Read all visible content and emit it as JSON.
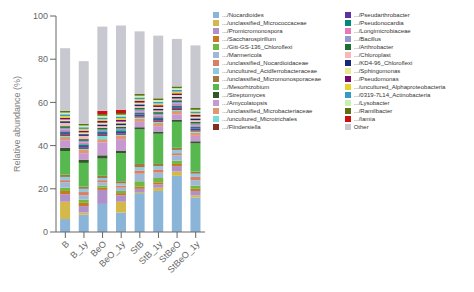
{
  "chart_data": {
    "type": "bar",
    "stacked": true,
    "legend": "right",
    "grid": false,
    "ylabel": "Relative abundance (%)",
    "categories": [
      "B",
      "B_1y",
      "BeO",
      "BeO_1y",
      "StB",
      "StB_1y",
      "StBeO",
      "StBeO_1y"
    ],
    "ylim": [
      0,
      100
    ],
    "yticks": [
      0,
      20,
      40,
      60,
      80,
      100
    ],
    "series": [
      {
        "name": ".../Nocardioides",
        "color": "#8ab4d8",
        "values": [
          6.0,
          8.0,
          13.0,
          9.0,
          18.0,
          19.0,
          26.0,
          16.0
        ]
      },
      {
        "name": ".../unclassified_Micrococcaceae",
        "color": "#d4b84a",
        "values": [
          8.0,
          1.0,
          0.0,
          5.0,
          0.5,
          1.5,
          2.0,
          1.0
        ]
      },
      {
        "name": ".../Promicromonospora",
        "color": "#b090c8",
        "values": [
          3.5,
          3.0,
          6.5,
          3.0,
          1.5,
          1.5,
          2.5,
          2.0
        ]
      },
      {
        "name": ".../Saccharospirillum",
        "color": "#c87820",
        "values": [
          1.5,
          1.5,
          1.0,
          1.0,
          1.0,
          1.0,
          1.0,
          1.0
        ]
      },
      {
        "name": ".../Gitt-GS-136_Chloroflexi",
        "color": "#70b840",
        "values": [
          1.5,
          1.5,
          1.0,
          1.0,
          2.5,
          2.0,
          1.5,
          1.5
        ]
      },
      {
        "name": ".../Marmericola",
        "color": "#a0b8d8",
        "values": [
          2.5,
          2.0,
          1.5,
          1.5,
          3.5,
          2.5,
          2.5,
          2.5
        ]
      },
      {
        "name": ".../unclassified_Nocardioidaceae",
        "color": "#d88060",
        "values": [
          1.0,
          1.5,
          1.0,
          1.0,
          1.5,
          1.5,
          1.0,
          1.5
        ]
      },
      {
        "name": ".../uncultured_Acidferrobacteraceae",
        "color": "#90c8e0",
        "values": [
          1.5,
          1.5,
          1.0,
          1.0,
          1.5,
          1.5,
          1.5,
          1.5
        ]
      },
      {
        "name": ".../unclassified_Micromonosporaceae",
        "color": "#a07840",
        "values": [
          1.0,
          1.0,
          1.0,
          1.0,
          1.5,
          1.0,
          1.0,
          1.0
        ]
      },
      {
        "name": ".../Mesorhizobium",
        "color": "#58b850",
        "values": [
          11.0,
          11.0,
          8.0,
          13.0,
          16.0,
          14.0,
          12.0,
          13.0
        ]
      },
      {
        "name": ".../Streptomyces",
        "color": "#305828",
        "values": [
          1.5,
          1.5,
          1.5,
          1.0,
          1.0,
          1.0,
          1.0,
          1.0
        ]
      },
      {
        "name": ".../Amycolatopsis",
        "color": "#c898d0",
        "values": [
          3.5,
          3.0,
          6.0,
          5.5,
          2.5,
          2.5,
          2.5,
          2.5
        ]
      },
      {
        "name": ".../unclassified_Microbacteriaceae",
        "color": "#e09870",
        "values": [
          1.5,
          1.5,
          1.5,
          1.5,
          1.5,
          1.5,
          1.5,
          1.5
        ]
      },
      {
        "name": ".../uncultured_Microtrichales",
        "color": "#70e0d8",
        "values": [
          0.5,
          0.5,
          1.5,
          0.5,
          0.5,
          0.5,
          0.5,
          0.5
        ]
      },
      {
        "name": ".../Flindersiella",
        "color": "#803020",
        "values": [
          0.5,
          0.5,
          0.5,
          0.5,
          0.5,
          0.5,
          0.5,
          0.5
        ]
      },
      {
        "name": ".../Pseudarthrobacter",
        "color": "#6030a0",
        "values": [
          0.8,
          0.8,
          0.8,
          0.8,
          0.8,
          0.8,
          0.8,
          0.8
        ]
      },
      {
        "name": ".../Pseudonocardia",
        "color": "#008878",
        "values": [
          0.8,
          0.8,
          0.8,
          0.8,
          0.8,
          0.8,
          0.8,
          0.8
        ]
      },
      {
        "name": ".../Longimicrobiaceae",
        "color": "#e878b8",
        "values": [
          0.8,
          0.8,
          0.0,
          0.0,
          0.8,
          0.8,
          0.8,
          0.8
        ]
      },
      {
        "name": ".../Bacillus",
        "color": "#9898d0",
        "values": [
          0.8,
          0.8,
          0.8,
          0.8,
          0.8,
          0.8,
          0.8,
          0.8
        ]
      },
      {
        "name": ".../Arthrobacter",
        "color": "#1a7030",
        "values": [
          0.8,
          0.8,
          0.8,
          0.8,
          0.8,
          0.8,
          0.8,
          0.8
        ]
      },
      {
        "name": ".../Chloroplast",
        "color": "#f8b8b8",
        "values": [
          1.5,
          1.5,
          0.8,
          0.8,
          0.8,
          0.8,
          0.8,
          0.8
        ]
      },
      {
        "name": ".../KD4-96_Chloroflexi",
        "color": "#182878",
        "values": [
          0.8,
          0.8,
          0.8,
          0.8,
          0.8,
          0.8,
          0.8,
          0.8
        ]
      },
      {
        "name": ".../Sphingomonas",
        "color": "#e8e890",
        "values": [
          0.8,
          0.8,
          0.8,
          0.8,
          0.8,
          0.8,
          0.8,
          0.8
        ]
      },
      {
        "name": ".../Pseudomonas",
        "color": "#780870",
        "values": [
          0.8,
          0.8,
          0.8,
          0.8,
          0.8,
          0.8,
          0.8,
          0.8
        ]
      },
      {
        "name": ".../uncultured_Alphaproteobacteria",
        "color": "#e8d030",
        "values": [
          0.8,
          0.8,
          0.8,
          0.8,
          0.8,
          0.8,
          0.8,
          0.8
        ]
      },
      {
        "name": ".../0319-7L14_Actinobacteria",
        "color": "#3898c8",
        "values": [
          0.8,
          0.8,
          0.8,
          0.8,
          0.8,
          0.8,
          0.8,
          0.8
        ]
      },
      {
        "name": ".../Lysobacter",
        "color": "#c8f0b0",
        "values": [
          0.8,
          0.8,
          0.8,
          0.8,
          0.8,
          0.8,
          0.8,
          0.8
        ]
      },
      {
        "name": ".../Ramilbacter",
        "color": "#607010",
        "values": [
          0.8,
          0.8,
          0.8,
          0.8,
          0.8,
          0.8,
          0.8,
          0.8
        ]
      },
      {
        "name": ".../Iamia",
        "color": "#cc1010",
        "values": [
          0.0,
          0.0,
          1.5,
          1.5,
          0.0,
          0.0,
          0.0,
          0.0
        ]
      },
      {
        "name": "Other",
        "color": "#c8c8d0",
        "values": [
          29.0,
          29.0,
          39.0,
          39.0,
          29.0,
          29.0,
          22.0,
          29.0
        ]
      }
    ]
  }
}
